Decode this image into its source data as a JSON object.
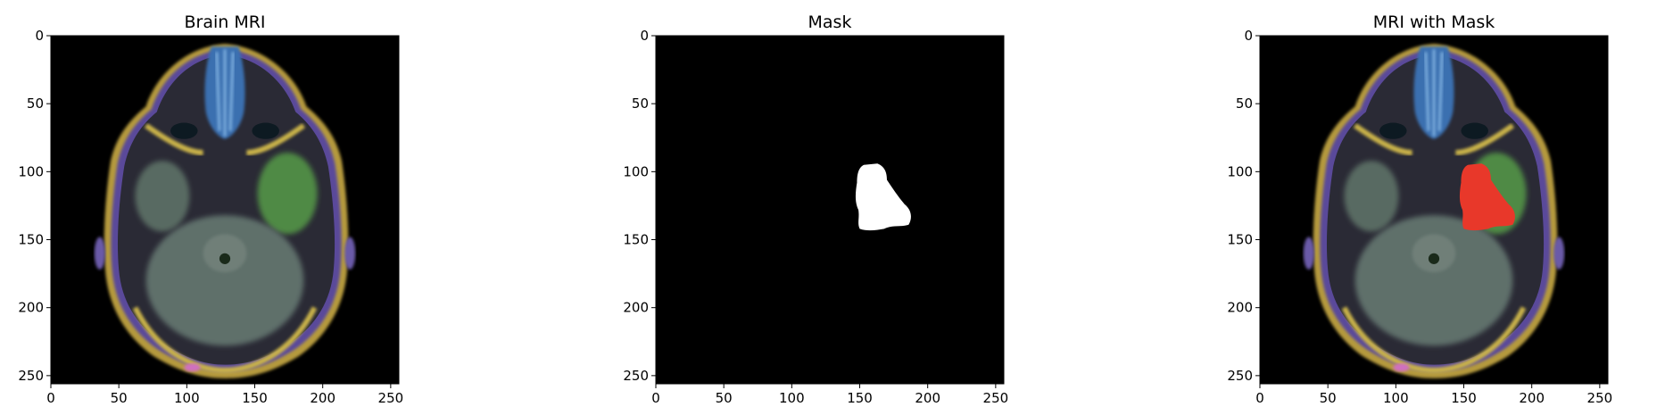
{
  "panels": [
    {
      "title": "Brain MRI",
      "xticks": [
        "0",
        "50",
        "100",
        "150",
        "200",
        "250"
      ],
      "yticks": [
        "0",
        "50",
        "100",
        "150",
        "200",
        "250"
      ],
      "image": "brain-mri-axial-slice",
      "show_brain": true,
      "show_mask": false,
      "mask_color": "#ffffff"
    },
    {
      "title": "Mask",
      "xticks": [
        "0",
        "50",
        "100",
        "150",
        "200",
        "250"
      ],
      "yticks": [
        "0",
        "50",
        "100",
        "150",
        "200",
        "250"
      ],
      "image": "binary-tumor-mask",
      "show_brain": false,
      "show_mask": true,
      "mask_color": "#ffffff"
    },
    {
      "title": "MRI with Mask",
      "xticks": [
        "0",
        "50",
        "100",
        "150",
        "200",
        "250"
      ],
      "yticks": [
        "0",
        "50",
        "100",
        "150",
        "200",
        "250"
      ],
      "image": "brain-mri-with-red-mask-overlay",
      "show_brain": true,
      "show_mask": true,
      "mask_color": "#e8382a"
    }
  ],
  "axis": {
    "xlim": [
      0,
      256
    ],
    "ylim": [
      256,
      0
    ],
    "tick_values": [
      0,
      50,
      100,
      150,
      200,
      250
    ]
  },
  "mask_region": {
    "x_range": [
      147,
      188
    ],
    "y_range": [
      94,
      142
    ]
  },
  "colors": {
    "background": "#000000",
    "brain_tissue": "#5f6f6a",
    "lesion_green": "#4f8a45",
    "overlay": "#e8382a",
    "sinus_blue": "#3a6fb0",
    "skull_yellow": "#b59a3c",
    "skull_purple": "#5a4a9a"
  }
}
